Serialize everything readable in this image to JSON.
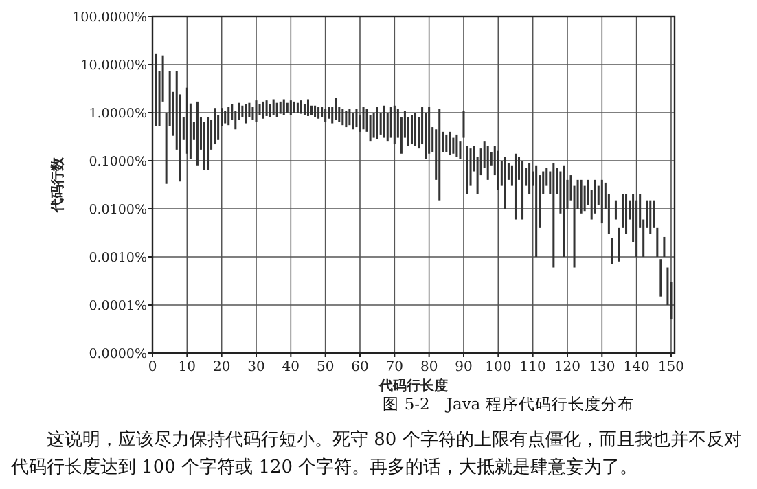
{
  "chart_data": {
    "type": "bar",
    "title": "图 5-2　Java 程序代码行长度分布",
    "xlabel": "代码行长度",
    "ylabel": "代码行数",
    "annotations": [
      "这说明，应该尽力保持代码行短小。死守 80 个字符的上限有点僵化，而且我也并不反对代码行长度达到 100 个字符或 120 个字符。再多的话，大抵就是肆意妄为了。"
    ],
    "color": "#333333",
    "log": true,
    "grid": true,
    "xlim": [
      0,
      151
    ],
    "xticks": [
      0,
      10,
      20,
      30,
      40,
      50,
      60,
      70,
      80,
      90,
      100,
      110,
      120,
      130,
      140,
      150
    ],
    "ylim": [
      1e-05,
      100
    ],
    "yticks": [
      {
        "value": 1e-05,
        "label": "0.0000%"
      },
      {
        "value": 0.0001,
        "label": "0.0001%"
      },
      {
        "value": 0.001,
        "label": "0.0010%"
      },
      {
        "value": 0.01,
        "label": "0.0100%"
      },
      {
        "value": 0.1,
        "label": "0.1000%"
      },
      {
        "value": 1,
        "label": "1.0000%"
      },
      {
        "value": 10,
        "label": "10.0000%"
      },
      {
        "value": 100,
        "label": "100.0000%"
      }
    ],
    "x": [
      1,
      2,
      3,
      4,
      5,
      6,
      7,
      8,
      9,
      10,
      11,
      12,
      13,
      14,
      15,
      16,
      17,
      18,
      19,
      20,
      21,
      22,
      23,
      24,
      25,
      26,
      27,
      28,
      29,
      30,
      31,
      32,
      33,
      34,
      35,
      36,
      37,
      38,
      39,
      40,
      41,
      42,
      43,
      44,
      45,
      46,
      47,
      48,
      49,
      50,
      51,
      52,
      53,
      54,
      55,
      56,
      57,
      58,
      59,
      60,
      61,
      62,
      63,
      64,
      65,
      66,
      67,
      68,
      69,
      70,
      71,
      72,
      73,
      74,
      75,
      76,
      77,
      78,
      79,
      80,
      81,
      82,
      83,
      84,
      85,
      86,
      87,
      88,
      89,
      90,
      91,
      92,
      93,
      94,
      95,
      96,
      97,
      98,
      99,
      100,
      101,
      102,
      103,
      104,
      105,
      106,
      107,
      108,
      109,
      110,
      111,
      112,
      113,
      114,
      115,
      116,
      117,
      118,
      119,
      120,
      121,
      122,
      123,
      124,
      125,
      126,
      127,
      128,
      129,
      130,
      131,
      132,
      133,
      134,
      135,
      136,
      137,
      138,
      139,
      140,
      141,
      142,
      143,
      144,
      145,
      146,
      147,
      148,
      149,
      150
    ],
    "base": [
      0.52,
      0.52,
      1.7,
      0.033,
      0.52,
      0.33,
      0.17,
      0.037,
      0.27,
      0.14,
      0.11,
      0.27,
      0.08,
      0.17,
      0.065,
      0.065,
      0.17,
      0.22,
      0.27,
      0.52,
      0.6,
      0.55,
      0.7,
      0.45,
      0.7,
      0.8,
      0.6,
      0.8,
      0.7,
      0.65,
      0.9,
      0.75,
      0.85,
      0.8,
      0.9,
      0.8,
      0.95,
      0.9,
      1.0,
      0.9,
      1.0,
      1.0,
      0.95,
      0.9,
      0.85,
      0.9,
      0.8,
      0.75,
      0.8,
      0.65,
      0.75,
      0.6,
      0.7,
      0.65,
      0.55,
      0.5,
      0.55,
      0.45,
      0.5,
      0.4,
      0.45,
      0.4,
      0.25,
      0.3,
      0.28,
      0.35,
      0.3,
      0.25,
      0.3,
      0.22,
      0.3,
      0.14,
      0.3,
      0.2,
      0.22,
      0.2,
      0.18,
      0.22,
      0.11,
      0.14,
      0.15,
      0.04,
      0.015,
      0.15,
      0.15,
      0.13,
      0.14,
      0.12,
      0.11,
      0.3,
      0.02,
      0.03,
      0.06,
      0.02,
      0.05,
      0.07,
      0.04,
      0.08,
      0.05,
      0.025,
      0.03,
      0.01,
      0.04,
      0.03,
      0.006,
      0.04,
      0.006,
      0.03,
      0.02,
      0.03,
      0.001,
      0.004,
      0.02,
      0.03,
      0.02,
      0.0006,
      0.02,
      0.008,
      0.001,
      0.01,
      0.015,
      0.0006,
      0.01,
      0.008,
      0.009,
      0.012,
      0.006,
      0.008,
      0.012,
      0.005,
      0.01,
      0.003,
      0.0007,
      0.006,
      0.0008,
      0.004,
      0.003,
      0.006,
      0.002,
      0.001,
      0.004,
      0.001,
      0.004,
      0.003,
      0.004,
      0.001,
      0.00015,
      0.001,
      0.0001,
      5e-05
    ],
    "values": [
      16.5,
      6.7,
      13.8,
      0.97,
      6.7,
      2.37,
      7.03,
      2.36,
      0.53,
      3.16,
      1.44,
      0.38,
      1.62,
      0.63,
      0.585,
      0.735,
      0.55,
      1.03,
      0.63,
      0.73,
      0.5,
      0.75,
      0.8,
      0.65,
      0.9,
      0.6,
      0.9,
      0.8,
      0.6,
      1.15,
      0.6,
      0.95,
      0.95,
      0.7,
      1.0,
      0.8,
      0.75,
      1.0,
      0.6,
      0.9,
      0.7,
      0.6,
      0.85,
      0.6,
      1.05,
      0.5,
      0.6,
      0.55,
      0.5,
      0.55,
      0.55,
      0.7,
      1.3,
      0.65,
      0.65,
      0.6,
      0.65,
      0.55,
      0.7,
      0.5,
      0.85,
      0.8,
      0.65,
      0.7,
      1.02,
      0.65,
      1.1,
      0.75,
      1.0,
      1.18,
      0.9,
      0.66,
      0.8,
      0.6,
      0.68,
      0.8,
      0.62,
      1.08,
      0.89,
      1.16,
      0.35,
      0.41,
      1.185,
      0.25,
      0.2,
      0.27,
      0.16,
      0.23,
      0.14,
      0.8,
      0.18,
      0.15,
      0.14,
      0.1,
      0.13,
      0.18,
      0.16,
      0.07,
      0.15,
      0.135,
      0.07,
      0.11,
      0.05,
      0.05,
      0.134,
      0.08,
      0.094,
      0.04,
      0.07,
      0.03,
      0.079,
      0.046,
      0.04,
      0.04,
      0.04,
      0.0894,
      0.05,
      0.052,
      0.079,
      0.03,
      0.035,
      0.0294,
      0.03,
      0.032,
      0.021,
      0.028,
      0.019,
      0.032,
      0.018,
      0.035,
      0.025,
      0.017,
      0.0018,
      0.009,
      0.0032,
      0.016,
      0.017,
      0.009,
      0.018,
      0.014,
      0.016,
      0.005,
      0.011,
      0.012,
      0.011,
      0.003,
      0.00075,
      0.0016,
      0.0005,
      0.00025
    ]
  }
}
